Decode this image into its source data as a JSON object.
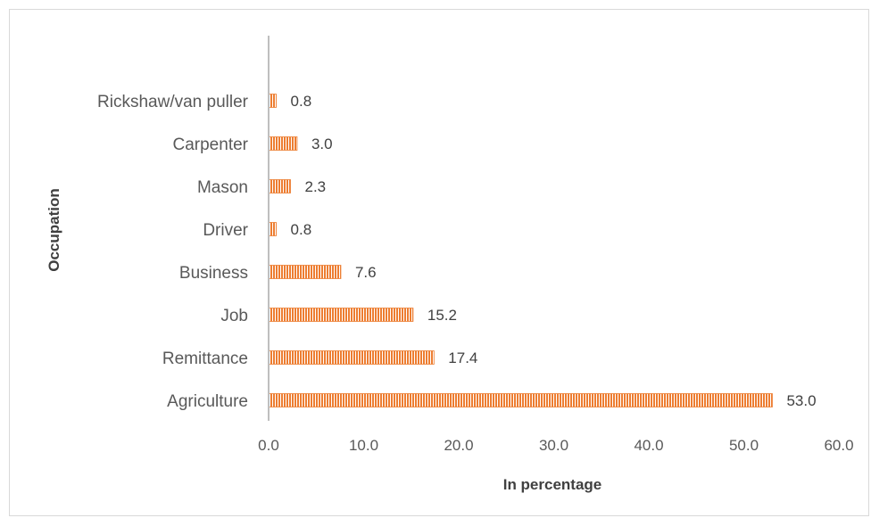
{
  "chart_data": {
    "type": "bar",
    "orientation": "horizontal",
    "categories": [
      "Rickshaw/van puller",
      "Carpenter",
      "Mason",
      "Driver",
      "Business",
      "Job",
      "Remittance",
      "Agriculture"
    ],
    "values": [
      0.8,
      3.0,
      2.3,
      0.8,
      7.6,
      15.2,
      17.4,
      53.0
    ],
    "value_labels": [
      "0.8",
      "3.0",
      "2.3",
      "0.8",
      "7.6",
      "15.2",
      "17.4",
      "53.0"
    ],
    "xlabel": "In percentage",
    "ylabel": "Occupation",
    "xlim": [
      0,
      60
    ],
    "xticks": [
      "0.0",
      "10.0",
      "20.0",
      "30.0",
      "40.0",
      "50.0",
      "60.0"
    ],
    "grid": false,
    "legend": "none",
    "bar_color": "#ED7D31",
    "bar_stripe_color": "#ffffff",
    "axis_color": "#bfbfbf"
  }
}
